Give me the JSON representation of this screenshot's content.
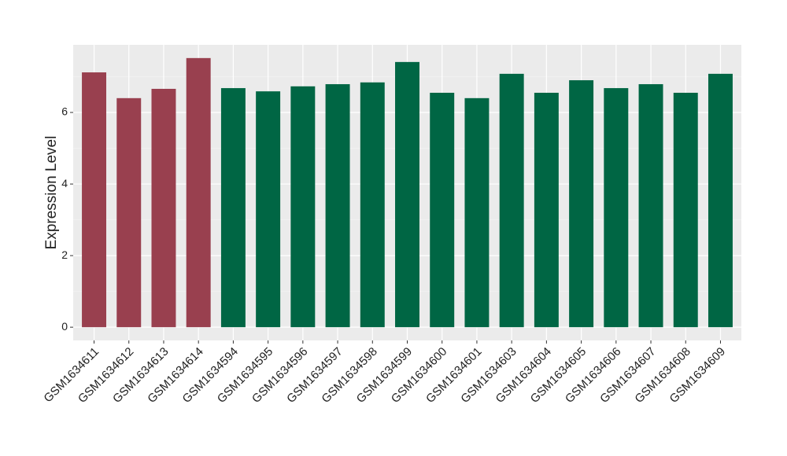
{
  "chart_data": {
    "type": "bar",
    "y_label": "Expression Level",
    "categories": [
      "GSM1634611",
      "GSM1634612",
      "GSM1634613",
      "GSM1634614",
      "GSM1634594",
      "GSM1634595",
      "GSM1634596",
      "GSM1634597",
      "GSM1634598",
      "GSM1634599",
      "GSM1634600",
      "GSM1634601",
      "GSM1634603",
      "GSM1634604",
      "GSM1634605",
      "GSM1634606",
      "GSM1634607",
      "GSM1634608",
      "GSM1634609"
    ],
    "values": [
      7.12,
      6.4,
      6.66,
      7.52,
      6.68,
      6.59,
      6.73,
      6.79,
      6.84,
      7.41,
      6.55,
      6.4,
      7.08,
      6.55,
      6.9,
      6.68,
      6.79,
      6.55,
      7.08
    ],
    "colors": [
      "#99404f",
      "#99404f",
      "#99404f",
      "#99404f",
      "#006644",
      "#006644",
      "#006644",
      "#006644",
      "#006644",
      "#006644",
      "#006644",
      "#006644",
      "#006644",
      "#006644",
      "#006644",
      "#006644",
      "#006644",
      "#006644",
      "#006644"
    ],
    "ylim": [
      -0.37,
      7.89
    ],
    "yticks": [
      0,
      2,
      4,
      6
    ],
    "minor_yticks": [
      1,
      3,
      5,
      7
    ],
    "grid": true
  }
}
